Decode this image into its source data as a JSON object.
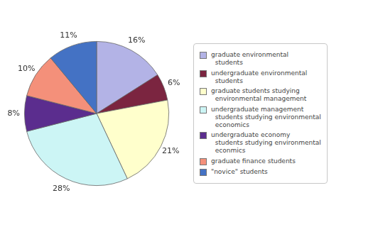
{
  "chart_data": {
    "type": "pie",
    "categories": [
      "graduate environmental\n  students",
      "undergraduate environmental\n  students",
      "graduate students studying\n  environmental management",
      "undergraduate management\n  students studying environmental\n  economics",
      "undergraduate economy\n  students studying environmental\n  econmics",
      "graduate finance students",
      "\"novice\" students"
    ],
    "values": [
      16,
      6,
      21,
      28,
      8,
      10,
      11
    ],
    "value_labels": [
      "16%",
      "6%",
      "21%",
      "28%",
      "8%",
      "10%",
      "11%"
    ],
    "colors": [
      "#b3b3e6",
      "#7b2540",
      "#ffffcc",
      "#ccf5f5",
      "#5b2d8e",
      "#f4907a",
      "#4472c4"
    ],
    "data_labels": true,
    "legend": "right"
  }
}
